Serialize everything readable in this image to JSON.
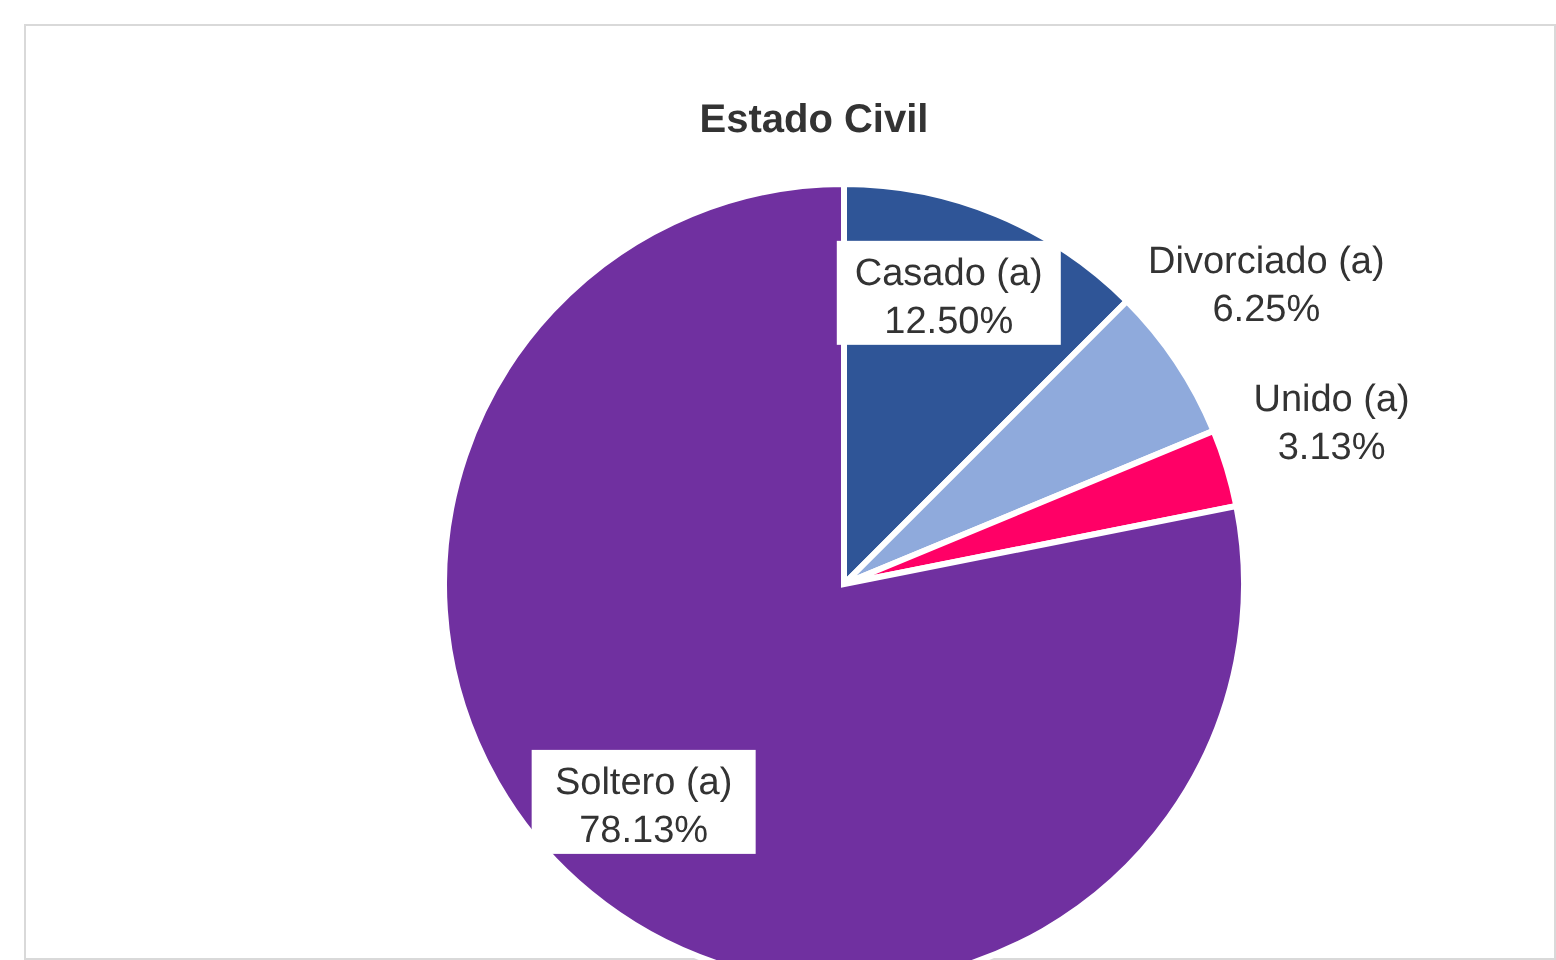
{
  "chart_data": {
    "type": "pie",
    "title": "Estado Civil",
    "categories": [
      "Casado (a)",
      "Divorciado (a)",
      "Unido (a)",
      "Soltero (a)"
    ],
    "values": [
      12.5,
      6.25,
      3.13,
      78.13
    ],
    "value_labels": [
      "12.50%",
      "6.25%",
      "3.13%",
      "78.13%"
    ],
    "colors": [
      "#2f5597",
      "#8faadc",
      "#ff0066",
      "#7030a0"
    ],
    "legend": false
  }
}
